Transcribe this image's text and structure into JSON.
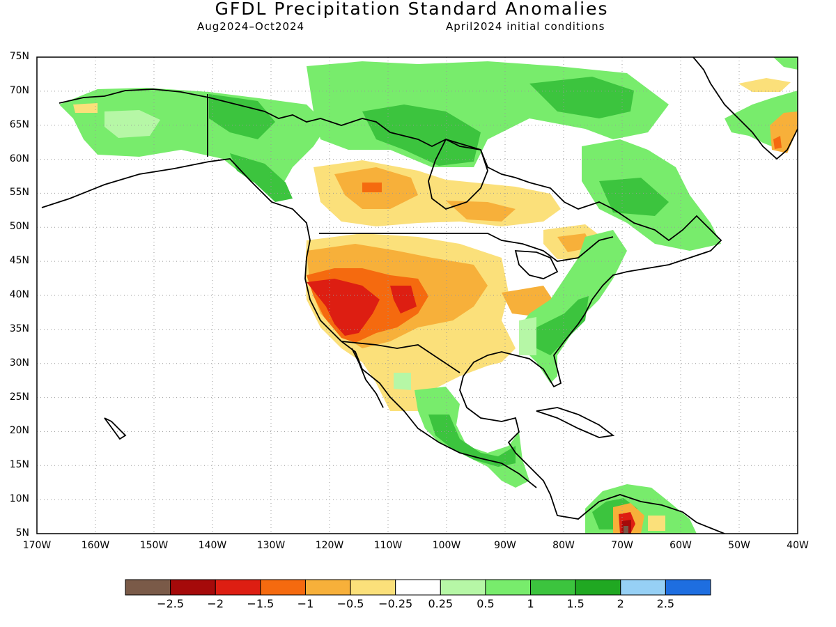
{
  "title": "GFDL Precipitation Standard Anomalies",
  "subtitle_left": "Aug2024–Oct2024",
  "subtitle_right": "April2024 initial conditions",
  "lat_labels": [
    "75N",
    "70N",
    "65N",
    "60N",
    "55N",
    "50N",
    "45N",
    "40N",
    "35N",
    "30N",
    "25N",
    "20N",
    "15N",
    "10N",
    "5N"
  ],
  "lon_labels": [
    "170W",
    "160W",
    "150W",
    "140W",
    "130W",
    "120W",
    "110W",
    "100W",
    "90W",
    "80W",
    "70W",
    "60W",
    "50W",
    "40W"
  ],
  "map_extent": {
    "lon_range": [
      -170,
      -40
    ],
    "lat_range": [
      5,
      75
    ],
    "grid": true
  },
  "colorbar": {
    "labels": [
      "−2.5",
      "−2",
      "−1.5",
      "−1",
      "−0.5",
      "−0.25",
      "0.25",
      "0.5",
      "1",
      "1.5",
      "2",
      "2.5"
    ],
    "colors": [
      "#7a5a48",
      "#a50a0a",
      "#dd1e12",
      "#f56a0f",
      "#f7b03a",
      "#fbe07a",
      "#ffffff",
      "#b6f7a6",
      "#78ec6c",
      "#3cc43e",
      "#20a822",
      "#96d0f5",
      "#1e6ee0"
    ]
  },
  "colors": {
    "light_green": "#b6f7a6",
    "green": "#78ec6c",
    "mid_green": "#3cc43e",
    "dark_green": "#20a822",
    "light_yellow": "#fbe07a",
    "orange_light": "#f7b03a",
    "orange": "#f56a0f",
    "red": "#dd1e12",
    "dark_red": "#a50a0a",
    "brown": "#7a5a48"
  }
}
